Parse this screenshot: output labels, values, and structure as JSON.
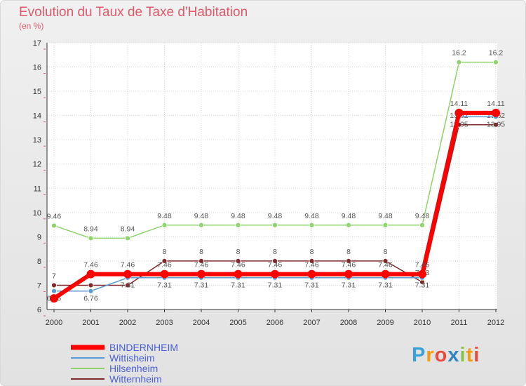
{
  "header": {
    "title": "Evolution du Taux de Taxe d'Habitation",
    "unit": "(en %)"
  },
  "logo": {
    "text": "Proxiti"
  },
  "chart_data": {
    "type": "line",
    "title": "Evolution du Taux de Taxe d'Habitation",
    "ylabel": "(en %)",
    "xlabel": "",
    "ylim": [
      6,
      17
    ],
    "yticks": [
      "6",
      "7",
      "8",
      "9",
      "10",
      "11",
      "12",
      "13",
      "14",
      "15",
      "16",
      "17"
    ],
    "grid": true,
    "legend_position": "bottom-left",
    "x": [
      "2000",
      "2001",
      "2002",
      "2003",
      "2004",
      "2005",
      "2006",
      "2007",
      "2008",
      "2009",
      "2010",
      "2011",
      "2012"
    ],
    "series": [
      {
        "name": "BINDERNHEIM",
        "color": "#ff0000",
        "values": [
          6.46,
          7.46,
          7.46,
          7.46,
          7.46,
          7.46,
          7.46,
          7.46,
          7.46,
          7.46,
          7.46,
          14.11,
          14.11
        ],
        "labels": [
          "",
          "7.46",
          "7.46",
          "7.46",
          "7.46",
          "7.46",
          "7.46",
          "7.46",
          "7.46",
          "7.46",
          "7.46",
          "14.11",
          "14.11"
        ]
      },
      {
        "name": "Wittisheim",
        "color": "#5b9bd5",
        "values": [
          6.76,
          6.76,
          7.31,
          7.31,
          7.31,
          7.31,
          7.31,
          7.31,
          7.31,
          7.31,
          7.31,
          13.95,
          13.95
        ],
        "labels": [
          "6.76",
          "6.76",
          "7.31",
          "7.31",
          "7.31",
          "7.31",
          "7.31",
          "7.31",
          "7.31",
          "7.31",
          "7.31",
          "13.95",
          "13.95"
        ]
      },
      {
        "name": "Hilsenheim",
        "color": "#8ed46a",
        "values": [
          9.46,
          8.94,
          8.94,
          9.48,
          9.48,
          9.48,
          9.48,
          9.48,
          9.48,
          9.48,
          9.48,
          16.2,
          16.2
        ],
        "labels": [
          "9.46",
          "8.94",
          "8.94",
          "9.48",
          "9.48",
          "9.48",
          "9.48",
          "9.48",
          "9.48",
          "9.48",
          "9.48",
          "16.2",
          "16.2"
        ]
      },
      {
        "name": "Witternheim",
        "color": "#7f2a2a",
        "values": [
          7,
          7,
          7,
          8,
          8,
          8,
          8,
          8,
          8,
          8,
          7.13,
          13.62,
          13.62
        ],
        "labels": [
          "7",
          "7",
          "7",
          "8",
          "8",
          "8",
          "8",
          "8",
          "8",
          "8",
          "7.13",
          "13.62",
          "13.62"
        ]
      }
    ]
  }
}
